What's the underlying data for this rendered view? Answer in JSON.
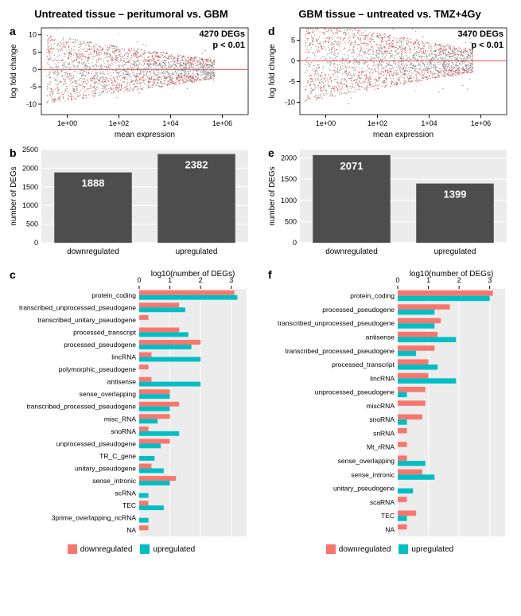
{
  "columns": {
    "left": {
      "title": "Untreated tissue – peritumoral vs. GBM"
    },
    "right": {
      "title": "GBM tissue – untreated vs. TMZ+4Gy"
    }
  },
  "panel_a": {
    "label": "a",
    "type": "scatter",
    "xlabel": "mean expression",
    "ylabel": "log fold change",
    "xlim": [
      -1,
      7
    ],
    "ylim": [
      -13,
      12
    ],
    "xticks": [
      "1e+00",
      "1e+02",
      "1+04",
      "1e+06"
    ],
    "yticks": [
      -10,
      -5,
      0,
      5,
      10
    ],
    "annotation_degs": "4270 DEGs",
    "annotation_p": "p < 0.01",
    "point_color_nonsig": "#7f7f7f",
    "point_color_sig": "#d62728",
    "hline_color": "#ff4d4d",
    "background_color": "#ffffff"
  },
  "panel_d": {
    "label": "d",
    "type": "scatter",
    "xlabel": "mean expression",
    "ylabel": "log fold change",
    "xlim": [
      -1,
      7
    ],
    "ylim": [
      -13,
      8
    ],
    "xticks": [
      "1e+00",
      "1e+02",
      "1+04",
      "1e+06"
    ],
    "yticks": [
      -10,
      -5,
      0,
      5
    ],
    "annotation_degs": "3470 DEGs",
    "annotation_p": "p < 0.01",
    "point_color_nonsig": "#7f7f7f",
    "point_color_sig": "#d62728",
    "hline_color": "#ff4d4d",
    "background_color": "#ffffff"
  },
  "panel_b": {
    "label": "b",
    "type": "bar",
    "ylabel": "number of DEGs",
    "categories": [
      "downregulated",
      "upregulated"
    ],
    "values": [
      1888,
      2382
    ],
    "ylim": [
      0,
      2500
    ],
    "ytick_step": 500,
    "bar_color": "#4d4d4d",
    "value_label_color": "#ffffff",
    "background_color": "#ececec",
    "grid_color": "#ffffff"
  },
  "panel_e": {
    "label": "e",
    "type": "bar",
    "ylabel": "number of DEGs",
    "categories": [
      "downregulated",
      "upregulated"
    ],
    "values": [
      2071,
      1399
    ],
    "ylim": [
      0,
      2200
    ],
    "ytick_step": 500,
    "bar_color": "#4d4d4d",
    "value_label_color": "#ffffff",
    "background_color": "#ececec",
    "grid_color": "#ffffff"
  },
  "panel_c": {
    "label": "c",
    "type": "hbar_grouped",
    "xlabel": "log10(number of DEGs)",
    "xlim": [
      0,
      3.5
    ],
    "xtick_step": 1,
    "categories": [
      "protein_coding",
      "transcribed_unprocessed_pseudogene",
      "transcribed_unitary_pseudogene",
      "processed_transcript",
      "processed_pseudogene",
      "lincRNA",
      "polymorphic_pseudogene",
      "antisense",
      "sense_overlapping",
      "transcribed_processed_pseudogene",
      "misc_RNA",
      "snoRNA",
      "unprocessed_pseudogene",
      "TR_C_gene",
      "unitary_pseudogene",
      "sense_intronic",
      "scRNA",
      "TEC",
      "3prime_overlapping_ncRNA",
      "NA"
    ],
    "down_values": [
      3.1,
      1.3,
      0.3,
      1.3,
      2.0,
      0.4,
      0.3,
      0.4,
      1.0,
      1.3,
      1.0,
      0.3,
      1.0,
      0,
      0.4,
      1.2,
      0,
      0.3,
      0,
      0.3
    ],
    "up_values": [
      3.2,
      1.5,
      0,
      1.6,
      1.7,
      2.0,
      0,
      2.0,
      1.0,
      1.0,
      0.6,
      1.3,
      0.7,
      0.5,
      0.8,
      1.0,
      0.3,
      0.8,
      0.3,
      0
    ],
    "color_down": "#f8766d",
    "color_up": "#00bfc4",
    "background_color": "#ececec",
    "grid_color": "#ffffff",
    "legend": {
      "down": "downregulated",
      "up": "upregulated"
    }
  },
  "panel_f": {
    "label": "f",
    "type": "hbar_grouped",
    "xlabel": "log10(number of DEGs)",
    "xlim": [
      0,
      3.5
    ],
    "xtick_step": 1,
    "categories": [
      "protein_coding",
      "processed_pseudogene",
      "transcribed_unprocessed_pseudogene",
      "antisense",
      "transcribed_processed_pseudogene",
      "processed_transcript",
      "lincRNA",
      "unprocessed_pseudogene",
      "miscRNA",
      "snoRNA",
      "snRNA",
      "Mt_rRNA",
      "sense_overlapping",
      "sense_intronic",
      "unitary_pseudogene",
      "scaRNA",
      "TEC",
      "NA"
    ],
    "down_values": [
      3.1,
      1.7,
      1.4,
      1.3,
      1.2,
      1.0,
      1.0,
      0.9,
      0.9,
      0.8,
      0.3,
      0.3,
      0.3,
      0.8,
      0,
      0.3,
      0.6,
      0.3
    ],
    "up_values": [
      3.0,
      1.2,
      1.2,
      1.9,
      0.6,
      1.3,
      1.9,
      0.3,
      0,
      0.3,
      0,
      0,
      0.9,
      1.2,
      0.5,
      0,
      0.3,
      0
    ],
    "color_down": "#f8766d",
    "color_up": "#00bfc4",
    "background_color": "#ececec",
    "grid_color": "#ffffff",
    "legend": {
      "down": "downregulated",
      "up": "upregulated"
    }
  }
}
